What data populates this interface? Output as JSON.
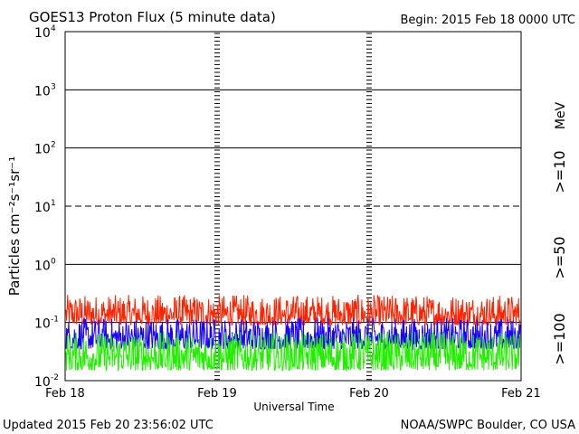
{
  "header": {
    "title": "GOES13 Proton Flux (5 minute data)",
    "begin": "Begin: 2015 Feb 18 0000 UTC"
  },
  "footer": {
    "updated": "Updated 2015 Feb 20 23:56:02 UTC",
    "credit": "NOAA/SWPC Boulder, CO USA"
  },
  "colors": {
    "ge10": "#ff2200",
    "ge50": "#1a00ff",
    "ge100": "#22ee00"
  },
  "chart_data": {
    "type": "line",
    "title": "GOES13 Proton Flux (5 minute data)",
    "xlabel": "Universal Time",
    "ylabel": "Particles cm⁻²s⁻¹sr⁻¹",
    "yscale": "log",
    "ylim": [
      0.01,
      10000
    ],
    "xlim": [
      "2015-02-18",
      "2015-02-21"
    ],
    "x_ticks": [
      "Feb 18",
      "Feb 19",
      "Feb 20",
      "Feb 21"
    ],
    "y_ticks": [
      {
        "value": 0.01,
        "base": "10",
        "exp": "-2"
      },
      {
        "value": 0.1,
        "base": "10",
        "exp": "-1"
      },
      {
        "value": 1,
        "base": "10",
        "exp": "0"
      },
      {
        "value": 10,
        "base": "10",
        "exp": "1"
      },
      {
        "value": 100,
        "base": "10",
        "exp": "2"
      },
      {
        "value": 1000,
        "base": "10",
        "exp": "3"
      },
      {
        "value": 10000,
        "base": "10",
        "exp": "4"
      }
    ],
    "grid": "horizontal lines at each decade; dashed at 10",
    "unit_label": "MeV",
    "series": [
      {
        "name": ">=10",
        "typical_range": [
          0.09,
          0.3
        ]
      },
      {
        "name": ">=50",
        "typical_range": [
          0.035,
          0.12
        ]
      },
      {
        "name": ">=100",
        "typical_range": [
          0.015,
          0.07
        ]
      }
    ]
  }
}
